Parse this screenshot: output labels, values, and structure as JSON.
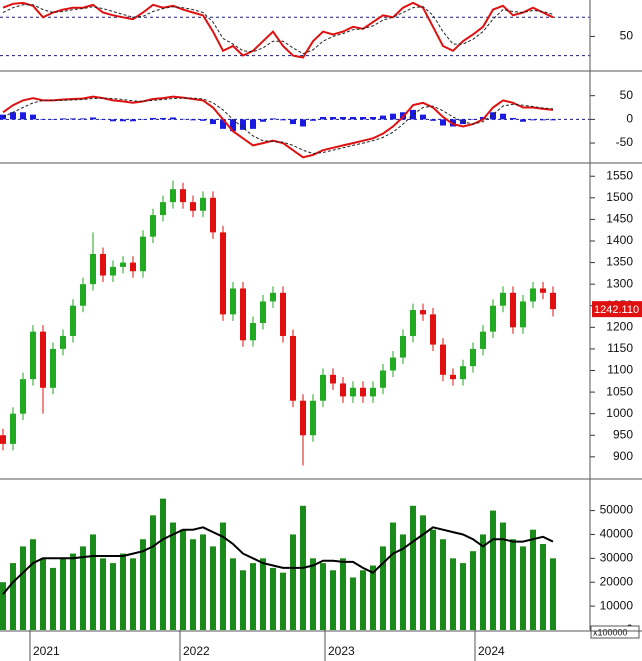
{
  "chart_data": [
    {
      "type": "line",
      "ylim": [
        15,
        88
      ],
      "yticks": [
        50
      ],
      "levels": [
        30,
        70
      ],
      "series": [
        {
          "name": "RSI",
          "color": "#e01010",
          "style": "solid",
          "values": [
            80,
            84,
            85,
            82,
            70,
            75,
            78,
            80,
            80,
            83,
            75,
            72,
            70,
            68,
            75,
            83,
            80,
            82,
            78,
            75,
            72,
            55,
            35,
            40,
            30,
            35,
            45,
            55,
            40,
            30,
            28,
            45,
            55,
            52,
            55,
            60,
            58,
            65,
            72,
            70,
            80,
            85,
            80,
            60,
            40,
            35,
            45,
            52,
            60,
            78,
            82,
            72,
            75,
            80,
            75,
            70
          ]
        },
        {
          "name": "Signal",
          "color": "#222222",
          "style": "dashed",
          "values": [
            75,
            80,
            83,
            83,
            78,
            75,
            76,
            78,
            79,
            81,
            79,
            76,
            73,
            70,
            71,
            76,
            79,
            81,
            80,
            78,
            75,
            65,
            48,
            42,
            35,
            34,
            38,
            45,
            45,
            38,
            32,
            36,
            45,
            50,
            53,
            57,
            58,
            61,
            67,
            70,
            75,
            80,
            81,
            72,
            55,
            42,
            42,
            47,
            55,
            68,
            78,
            76,
            75,
            77,
            76,
            73
          ]
        }
      ]
    },
    {
      "type": "macd",
      "ylim": [
        -90,
        100
      ],
      "yticks": [
        -50,
        0,
        50
      ],
      "histogram": {
        "color": "#1a1ae0",
        "values": [
          10,
          15,
          15,
          10,
          0,
          0,
          2,
          2,
          2,
          4,
          0,
          -4,
          -4,
          -4,
          0,
          3,
          3,
          4,
          1,
          -2,
          -3,
          -10,
          -20,
          -25,
          -22,
          -20,
          -5,
          2,
          -2,
          -10,
          -15,
          -3,
          5,
          5,
          5,
          5,
          5,
          5,
          8,
          12,
          15,
          20,
          10,
          -3,
          -13,
          -15,
          -10,
          0,
          5,
          15,
          12,
          3,
          -5,
          -2,
          -2,
          -2
        ]
      },
      "series": [
        {
          "name": "MACD",
          "color": "#e01010",
          "style": "solid",
          "values": [
            15,
            30,
            40,
            45,
            40,
            40,
            42,
            43,
            44,
            48,
            45,
            40,
            38,
            35,
            38,
            43,
            45,
            48,
            46,
            43,
            40,
            25,
            0,
            -25,
            -40,
            -55,
            -50,
            -45,
            -50,
            -65,
            -80,
            -75,
            -65,
            -60,
            -55,
            -50,
            -45,
            -40,
            -30,
            -15,
            5,
            30,
            35,
            25,
            5,
            -10,
            -15,
            -10,
            0,
            25,
            40,
            35,
            25,
            25,
            22,
            20
          ]
        },
        {
          "name": "Signal",
          "color": "#222222",
          "style": "dashed",
          "values": [
            5,
            15,
            25,
            35,
            40,
            40,
            40,
            41,
            42,
            44,
            45,
            44,
            42,
            39,
            38,
            40,
            42,
            44,
            45,
            45,
            43,
            35,
            20,
            0,
            -18,
            -35,
            -45,
            -47,
            -48,
            -55,
            -65,
            -72,
            -70,
            -65,
            -60,
            -55,
            -50,
            -45,
            -38,
            -27,
            -10,
            10,
            25,
            28,
            18,
            5,
            -5,
            -10,
            -5,
            10,
            28,
            32,
            30,
            27,
            24,
            22
          ]
        }
      ]
    },
    {
      "type": "candlestick",
      "ylim": [
        851,
        1576
      ],
      "yticks": [
        900,
        950,
        1000,
        1050,
        1100,
        1150,
        1200,
        1250,
        1300,
        1350,
        1400,
        1450,
        1500,
        1550
      ],
      "up_color": "#22aa22",
      "down_color": "#e01010",
      "last_price_label": "1242.110",
      "open": [
        950,
        930,
        1000,
        1080,
        1190,
        1060,
        1150,
        1180,
        1250,
        1300,
        1370,
        1320,
        1340,
        1350,
        1330,
        1410,
        1460,
        1490,
        1520,
        1490,
        1470,
        1500,
        1420,
        1230,
        1290,
        1170,
        1210,
        1260,
        1280,
        1180,
        1030,
        950,
        1030,
        1090,
        1070,
        1040,
        1060,
        1040,
        1060,
        1100,
        1130,
        1180,
        1240,
        1230,
        1160,
        1090,
        1080,
        1110,
        1150,
        1190,
        1250,
        1280,
        1200,
        1260,
        1290,
        1280
      ],
      "high": [
        965,
        1015,
        1095,
        1205,
        1205,
        1165,
        1195,
        1265,
        1315,
        1420,
        1385,
        1355,
        1365,
        1365,
        1425,
        1475,
        1505,
        1540,
        1535,
        1505,
        1515,
        1515,
        1435,
        1305,
        1305,
        1225,
        1275,
        1295,
        1295,
        1195,
        1045,
        1045,
        1105,
        1105,
        1085,
        1075,
        1075,
        1075,
        1115,
        1145,
        1195,
        1255,
        1255,
        1245,
        1175,
        1105,
        1125,
        1165,
        1205,
        1265,
        1295,
        1295,
        1275,
        1305,
        1305,
        1295
      ],
      "low": [
        915,
        915,
        985,
        1065,
        1000,
        1045,
        1135,
        1165,
        1235,
        1285,
        1305,
        1305,
        1325,
        1315,
        1315,
        1395,
        1445,
        1475,
        1475,
        1455,
        1455,
        1405,
        1215,
        1215,
        1155,
        1155,
        1195,
        1245,
        1165,
        1015,
        880,
        935,
        1015,
        1055,
        1025,
        1025,
        1025,
        1025,
        1045,
        1085,
        1115,
        1165,
        1215,
        1145,
        1075,
        1065,
        1065,
        1095,
        1135,
        1175,
        1235,
        1185,
        1185,
        1245,
        1265,
        1225
      ],
      "close": [
        930,
        1000,
        1080,
        1190,
        1060,
        1150,
        1180,
        1250,
        1300,
        1370,
        1320,
        1340,
        1350,
        1330,
        1410,
        1460,
        1490,
        1520,
        1490,
        1470,
        1500,
        1420,
        1230,
        1290,
        1170,
        1210,
        1260,
        1280,
        1180,
        1030,
        950,
        1030,
        1090,
        1070,
        1040,
        1060,
        1040,
        1060,
        1100,
        1130,
        1180,
        1240,
        1230,
        1160,
        1090,
        1080,
        1110,
        1150,
        1190,
        1250,
        1280,
        1200,
        1260,
        1290,
        1280,
        1242.11
      ]
    },
    {
      "type": "volume",
      "ylim": [
        0,
        62800
      ],
      "yticks": [
        0,
        10000,
        20000,
        30000,
        40000,
        50000
      ],
      "unit_label": "x100000",
      "color": "#1a8a1a",
      "ma_color": "#000000",
      "xlim": [
        -0.3,
        58.7
      ],
      "xticks": [
        {
          "value": 2.7,
          "label": "2021"
        },
        {
          "value": 17.7,
          "label": "2022"
        },
        {
          "value": 32.2,
          "label": "2023"
        },
        {
          "value": 47.2,
          "label": "2024"
        }
      ],
      "values": [
        20000,
        28000,
        35000,
        38000,
        30000,
        26000,
        30000,
        32000,
        35000,
        40000,
        30000,
        28000,
        32000,
        30000,
        38000,
        48000,
        55000,
        45000,
        42000,
        38000,
        40000,
        35000,
        45000,
        30000,
        25000,
        28000,
        30000,
        26000,
        24000,
        40000,
        52000,
        30000,
        28000,
        25000,
        30000,
        22000,
        25000,
        27000,
        35000,
        45000,
        40000,
        52000,
        48000,
        42000,
        38000,
        30000,
        28000,
        33000,
        40000,
        50000,
        45000,
        38000,
        35000,
        42000,
        36000,
        30000
      ],
      "ma": [
        15000,
        20000,
        24000,
        28000,
        30000,
        30000,
        30000,
        30000,
        30500,
        31000,
        31000,
        31000,
        31000,
        32000,
        33000,
        35000,
        38000,
        40000,
        42000,
        42000,
        43000,
        41000,
        39000,
        36000,
        32000,
        30000,
        28000,
        27000,
        26000,
        26000,
        26000,
        27000,
        29000,
        29000,
        28500,
        28500,
        26000,
        24000,
        28000,
        32000,
        34000,
        37000,
        40000,
        43000,
        42000,
        41000,
        40000,
        38000,
        35000,
        38000,
        38000,
        37000,
        37000,
        38000,
        39000,
        37000
      ]
    }
  ]
}
